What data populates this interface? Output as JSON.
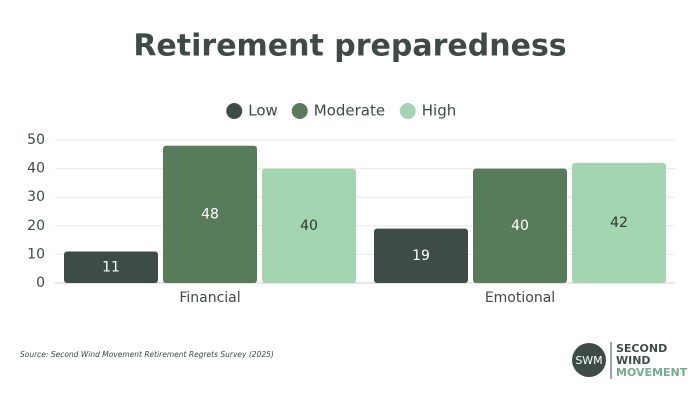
{
  "chart_data": {
    "type": "bar",
    "title": "Retirement preparedness",
    "categories": [
      "Financial",
      "Emotional"
    ],
    "series": [
      {
        "name": "Low",
        "color": "#3e4c48",
        "values": [
          11,
          19
        ]
      },
      {
        "name": "Moderate",
        "color": "#587b5a",
        "values": [
          48,
          40
        ]
      },
      {
        "name": "High",
        "color": "#a3d5b1",
        "values": [
          40,
          42
        ]
      }
    ],
    "ylim": [
      0,
      50
    ],
    "yticks": [
      0,
      10,
      20,
      30,
      40,
      50
    ],
    "grid": true,
    "legend": "top",
    "source": "Source: Second Wind Movement Retirement Regrets Survey (2025)"
  },
  "logo": {
    "mark": "SWM",
    "line1": "SECOND",
    "line2": "WIND",
    "line3": "MOVEMENT"
  }
}
